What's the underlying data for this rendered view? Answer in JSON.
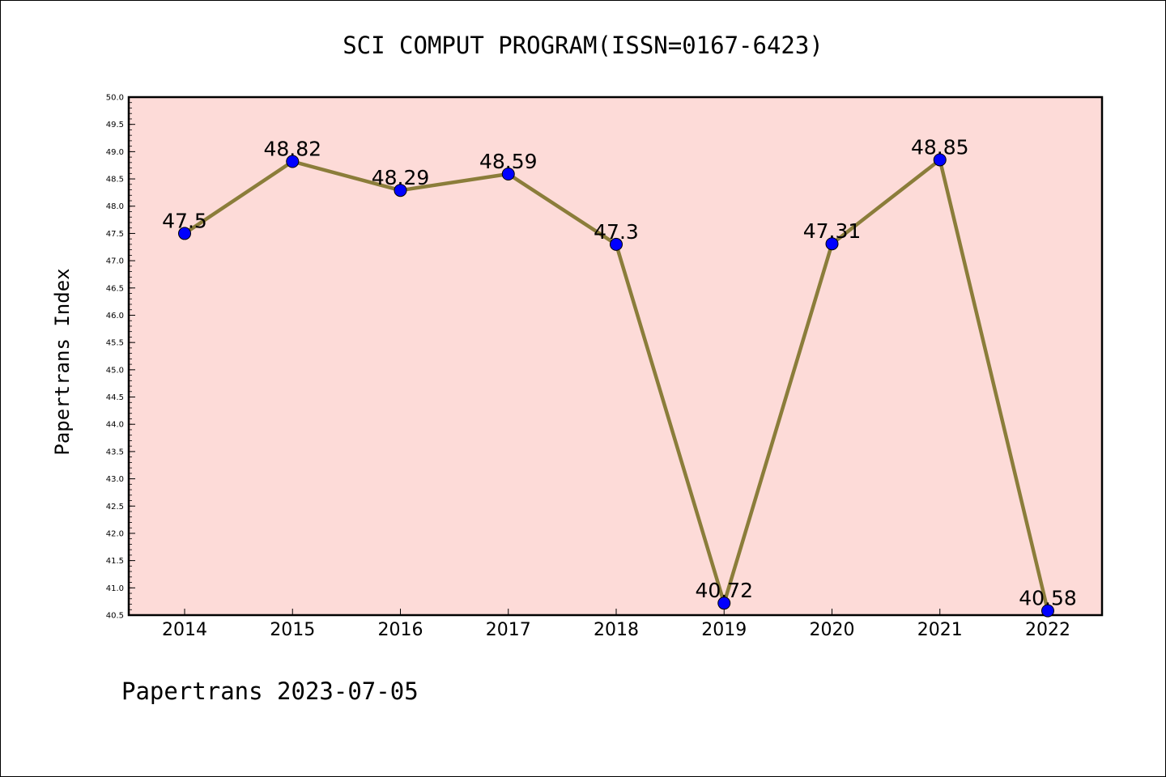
{
  "chart_data": {
    "type": "line",
    "title": "SCI COMPUT PROGRAM(ISSN=0167-6423)",
    "xlabel": "",
    "ylabel": "Papertrans Index",
    "footer": "Papertrans 2023-07-05",
    "categories": [
      "2014",
      "2015",
      "2016",
      "2017",
      "2018",
      "2019",
      "2020",
      "2021",
      "2022"
    ],
    "series": [
      {
        "values": [
          47.5,
          48.82,
          48.29,
          48.59,
          47.3,
          40.72,
          47.31,
          48.85,
          40.58
        ],
        "labels": [
          "47.5",
          "48.82",
          "48.29",
          "48.59",
          "47.3",
          "40.72",
          "47.31",
          "48.85",
          "40.58"
        ]
      }
    ],
    "ylim": [
      40.5,
      50.0
    ],
    "yticks": [
      "40.5",
      "41.0",
      "41.5",
      "42.0",
      "42.5",
      "43.0",
      "43.5",
      "44.0",
      "44.5",
      "45.0",
      "45.5",
      "46.0",
      "46.5",
      "47.0",
      "47.5",
      "48.0",
      "48.5",
      "49.0",
      "49.5",
      "50.0"
    ],
    "grid": false,
    "colors": {
      "plot_background": "#fddbd8",
      "line": "#8b7d3a",
      "marker": "#0000ff"
    }
  }
}
